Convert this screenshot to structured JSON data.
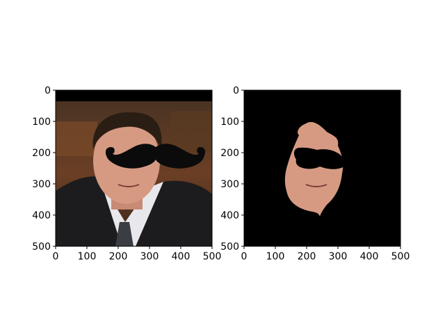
{
  "chart_data": [
    {
      "type": "image",
      "xlim": [
        0,
        500
      ],
      "ylim": [
        500,
        0
      ],
      "xticks": [
        "0",
        "100",
        "200",
        "300",
        "400",
        "500"
      ],
      "yticks": [
        "0",
        "100",
        "200",
        "300",
        "400",
        "500"
      ],
      "xtick_values": [
        0,
        100,
        200,
        300,
        400,
        500
      ],
      "ytick_values": [
        0,
        100,
        200,
        300,
        400,
        500
      ],
      "background_color": "#3d2a1c"
    },
    {
      "type": "image",
      "xlim": [
        0,
        500
      ],
      "ylim": [
        500,
        0
      ],
      "xticks": [
        "0",
        "100",
        "200",
        "300",
        "400",
        "500"
      ],
      "yticks": [
        "0",
        "100",
        "200",
        "300",
        "400",
        "500"
      ],
      "xtick_values": [
        0,
        100,
        200,
        300,
        400,
        500
      ],
      "ytick_values": [
        0,
        100,
        200,
        300,
        400,
        500
      ],
      "background_color": "#000000"
    }
  ],
  "colors": {
    "skin": "#d69a83",
    "suit": "#1c1c1e",
    "hair": "#2a1d14",
    "mustache": "#0b0b0b",
    "shirt": "#e8e8ec"
  }
}
